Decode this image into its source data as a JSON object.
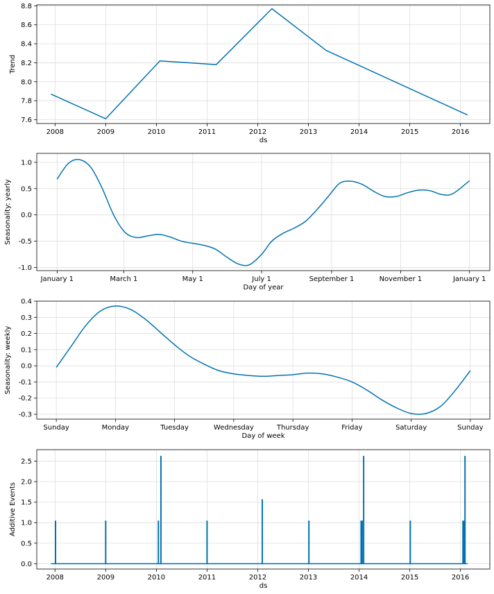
{
  "chart_data": [
    {
      "type": "line",
      "ylabel": "Trend",
      "xlabel": "ds",
      "x_ticks": [
        "2008",
        "2009",
        "2010",
        "2011",
        "2012",
        "2013",
        "2014",
        "2015",
        "2016"
      ],
      "y_ticks": [
        "7.6",
        "7.8",
        "8.0",
        "8.2",
        "8.4",
        "8.6",
        "8.8"
      ],
      "xlim": [
        2007.64,
        2016.58
      ],
      "ylim": [
        7.56,
        8.81
      ],
      "grid": true,
      "color": "#0072B2",
      "series": [
        {
          "x": [
            2007.92,
            2009.0,
            2010.07,
            2011.18,
            2012.28,
            2013.35,
            2016.14
          ],
          "y": [
            7.87,
            7.61,
            8.22,
            8.18,
            8.77,
            8.33,
            7.65
          ]
        }
      ]
    },
    {
      "type": "line",
      "ylabel": "Seasonality: yearly",
      "xlabel": "Day of year",
      "x_ticks": [
        "January 1",
        "March 1",
        "May 1",
        "July 1",
        "September 1",
        "November 1",
        "January 1"
      ],
      "x_tick_values": [
        0,
        59,
        120,
        181,
        243,
        304,
        365
      ],
      "y_ticks": [
        "-1.0",
        "-0.5",
        "0.0",
        "0.5",
        "1.0"
      ],
      "y_tick_values": [
        -1.0,
        -0.5,
        0.0,
        0.5,
        1.0
      ],
      "xlim": [
        -18,
        383
      ],
      "ylim": [
        -1.06,
        1.17
      ],
      "grid": true,
      "color": "#0072B2",
      "series": [
        {
          "x": [
            0,
            10,
            20,
            30,
            40,
            50,
            60,
            70,
            80,
            90,
            100,
            110,
            120,
            130,
            140,
            150,
            160,
            170,
            181,
            190,
            200,
            210,
            220,
            230,
            240,
            250,
            260,
            270,
            280,
            290,
            300,
            310,
            320,
            330,
            340,
            350,
            365
          ],
          "y": [
            0.68,
            0.98,
            1.05,
            0.9,
            0.5,
            0.0,
            -0.33,
            -0.43,
            -0.4,
            -0.37,
            -0.42,
            -0.5,
            -0.54,
            -0.58,
            -0.65,
            -0.8,
            -0.93,
            -0.95,
            -0.75,
            -0.5,
            -0.35,
            -0.25,
            -0.12,
            0.1,
            0.35,
            0.6,
            0.64,
            0.58,
            0.45,
            0.35,
            0.35,
            0.42,
            0.47,
            0.46,
            0.39,
            0.4,
            0.65
          ]
        }
      ]
    },
    {
      "type": "line",
      "ylabel": "Seasonality: weekly",
      "xlabel": "Day of week",
      "x_ticks": [
        "Sunday",
        "Monday",
        "Tuesday",
        "Wednesday",
        "Thursday",
        "Friday",
        "Saturday",
        "Sunday"
      ],
      "y_ticks": [
        "-0.3",
        "-0.2",
        "-0.1",
        "0.0",
        "0.1",
        "0.2",
        "0.3",
        "0.4"
      ],
      "y_tick_values": [
        -0.3,
        -0.2,
        -0.1,
        0.0,
        0.1,
        0.2,
        0.3,
        0.4
      ],
      "xlim": [
        -0.33,
        7.33
      ],
      "ylim": [
        -0.33,
        0.4
      ],
      "grid": true,
      "color": "#0072B2",
      "series": [
        {
          "x": [
            0,
            0.25,
            0.5,
            0.75,
            1.0,
            1.25,
            1.5,
            1.75,
            2.0,
            2.25,
            2.5,
            2.75,
            3.0,
            3.25,
            3.5,
            3.75,
            4.0,
            4.25,
            4.5,
            4.75,
            5.0,
            5.25,
            5.5,
            5.75,
            6.0,
            6.25,
            6.5,
            6.75,
            7.0
          ],
          "y": [
            -0.01,
            0.12,
            0.25,
            0.34,
            0.37,
            0.35,
            0.29,
            0.21,
            0.13,
            0.06,
            0.01,
            -0.03,
            -0.05,
            -0.06,
            -0.065,
            -0.06,
            -0.055,
            -0.045,
            -0.05,
            -0.07,
            -0.1,
            -0.15,
            -0.21,
            -0.26,
            -0.295,
            -0.295,
            -0.25,
            -0.15,
            -0.03
          ]
        }
      ]
    },
    {
      "type": "line",
      "ylabel": "Additive Events",
      "xlabel": "ds",
      "x_ticks": [
        "2008",
        "2009",
        "2010",
        "2011",
        "2012",
        "2013",
        "2014",
        "2015",
        "2016"
      ],
      "y_ticks": [
        "0.0",
        "0.5",
        "1.0",
        "1.5",
        "2.0",
        "2.5"
      ],
      "y_tick_values": [
        0.0,
        0.5,
        1.0,
        1.5,
        2.0,
        2.5
      ],
      "xlim": [
        2007.64,
        2016.58
      ],
      "ylim": [
        -0.13,
        2.78
      ],
      "grid": true,
      "color": "#0072B2",
      "baseline": {
        "x_start": 2007.92,
        "x_end": 2016.14,
        "y": 0.0
      },
      "spikes": [
        {
          "x": 2008.01,
          "y": 1.05
        },
        {
          "x": 2009.0,
          "y": 1.05
        },
        {
          "x": 2010.04,
          "y": 1.05
        },
        {
          "x": 2010.09,
          "y": 2.63
        },
        {
          "x": 2011.0,
          "y": 1.05
        },
        {
          "x": 2012.09,
          "y": 1.57
        },
        {
          "x": 2013.01,
          "y": 1.05
        },
        {
          "x": 2014.04,
          "y": 1.05
        },
        {
          "x": 2014.06,
          "y": 1.05
        },
        {
          "x": 2014.09,
          "y": 2.63
        },
        {
          "x": 2015.01,
          "y": 1.05
        },
        {
          "x": 2016.05,
          "y": 1.05
        },
        {
          "x": 2016.07,
          "y": 1.05
        },
        {
          "x": 2016.09,
          "y": 2.63
        }
      ]
    }
  ]
}
